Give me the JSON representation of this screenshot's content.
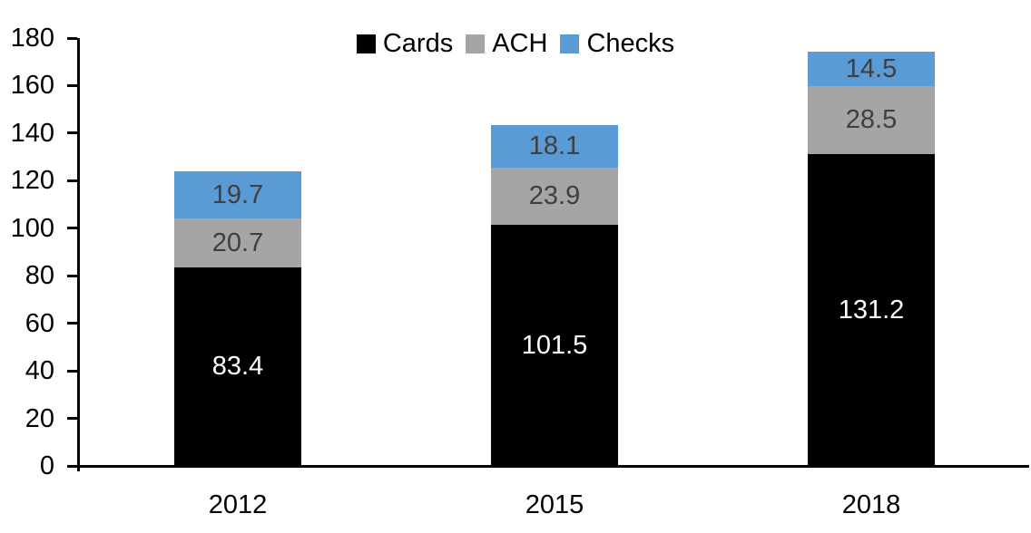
{
  "chart_data": {
    "type": "bar",
    "stacked": true,
    "title": "",
    "xlabel": "",
    "ylabel": "",
    "categories": [
      "2012",
      "2015",
      "2018"
    ],
    "series": [
      {
        "name": "Cards",
        "values": [
          83.4,
          101.5,
          131.2
        ],
        "color": "#000000",
        "label_color": "#FFFFFF"
      },
      {
        "name": "ACH",
        "values": [
          20.7,
          23.9,
          28.5
        ],
        "color": "#A5A5A5",
        "label_color": "#3F3F3F"
      },
      {
        "name": "Checks",
        "values": [
          19.7,
          18.1,
          14.5
        ],
        "color": "#5B9BD5",
        "label_color": "#3F3F3F"
      }
    ],
    "ylim": [
      0,
      180
    ],
    "yticks": [
      0,
      20,
      40,
      60,
      80,
      100,
      120,
      140,
      160,
      180
    ],
    "grid": false,
    "legend_position": "top-center",
    "axis_color": "#000000",
    "background_color": "#FFFFFF"
  }
}
